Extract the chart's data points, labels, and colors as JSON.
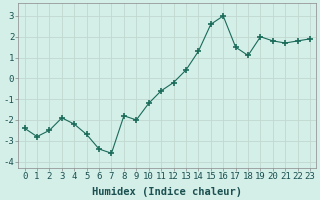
{
  "x": [
    0,
    1,
    2,
    3,
    4,
    5,
    6,
    7,
    8,
    9,
    10,
    11,
    12,
    13,
    14,
    15,
    16,
    17,
    18,
    19,
    20,
    21,
    22,
    23
  ],
  "y": [
    -2.4,
    -2.8,
    -2.5,
    -1.9,
    -2.2,
    -2.7,
    -3.4,
    -3.6,
    -1.8,
    -2.0,
    -1.2,
    -0.6,
    -0.2,
    0.4,
    1.3,
    2.6,
    3.0,
    1.5,
    1.1,
    2.0,
    1.8,
    1.7,
    1.8,
    1.9
  ],
  "line_color": "#1a6b5a",
  "marker": "+",
  "marker_size": 5,
  "bg_color": "#d4eee8",
  "grid_color": "#c0d8d0",
  "xlabel": "Humidex (Indice chaleur)",
  "xlim": [
    -0.5,
    23.5
  ],
  "ylim": [
    -4.3,
    3.6
  ],
  "yticks": [
    -4,
    -3,
    -2,
    -1,
    0,
    1,
    2,
    3
  ],
  "xticks": [
    0,
    1,
    2,
    3,
    4,
    5,
    6,
    7,
    8,
    9,
    10,
    11,
    12,
    13,
    14,
    15,
    16,
    17,
    18,
    19,
    20,
    21,
    22,
    23
  ],
  "xlabel_fontsize": 7.5,
  "tick_fontsize": 6.5
}
